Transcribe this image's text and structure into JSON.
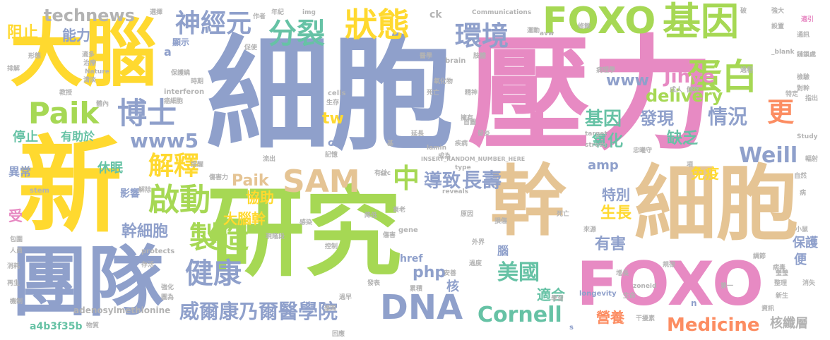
{
  "palette": {
    "blue": "#8fa0cb",
    "pink": "#e78ac3",
    "green": "#a6d854",
    "yellow": "#ffd92f",
    "tan": "#e5c494",
    "teal": "#66c2a5",
    "orange": "#fc8d62",
    "gray": "#b3b3b3"
  },
  "words": [
    {
      "text": "細胞",
      "color": "blue"
    },
    {
      "text": "壓力",
      "color": "pink"
    },
    {
      "text": "研究",
      "color": "green"
    },
    {
      "text": "新",
      "color": "yellow"
    },
    {
      "text": "幹",
      "color": "tan"
    },
    {
      "text": "細胞",
      "color": "tan"
    },
    {
      "text": "團隊",
      "color": "blue"
    },
    {
      "text": "大腦",
      "color": "yellow"
    },
    {
      "text": "FOXO",
      "color": "pink"
    },
    {
      "text": "FOXO",
      "color": "green"
    },
    {
      "text": "基因",
      "color": "green"
    },
    {
      "text": "蛋白",
      "color": "green"
    },
    {
      "text": "環境",
      "color": "blue"
    },
    {
      "text": "分裂",
      "color": "teal"
    },
    {
      "text": "狀態",
      "color": "yellow"
    },
    {
      "text": "神經元",
      "color": "blue"
    },
    {
      "text": "Paik",
      "color": "green"
    },
    {
      "text": "博士",
      "color": "blue"
    },
    {
      "text": "啟動",
      "color": "green"
    },
    {
      "text": "SAM",
      "color": "tan"
    },
    {
      "text": "DNA",
      "color": "blue"
    },
    {
      "text": "健康",
      "color": "blue"
    },
    {
      "text": "製造",
      "color": "green"
    },
    {
      "text": "解釋",
      "color": "yellow"
    },
    {
      "text": "威爾康乃爾醫學院",
      "color": "blue"
    },
    {
      "text": "中",
      "color": "green"
    },
    {
      "text": "導致",
      "color": "blue"
    },
    {
      "text": "長壽",
      "color": "blue"
    },
    {
      "text": "Weill",
      "color": "blue"
    },
    {
      "text": "更",
      "color": "orange"
    },
    {
      "text": "情況",
      "color": "blue"
    },
    {
      "text": "Cornell",
      "color": "teal"
    },
    {
      "text": "Medicine",
      "color": "orange"
    },
    {
      "text": "美國",
      "color": "teal"
    },
    {
      "text": "Jihye",
      "color": "pink"
    },
    {
      "text": "www",
      "color": "blue"
    },
    {
      "text": "www5",
      "color": "blue"
    },
    {
      "text": "delivery",
      "color": "green"
    },
    {
      "text": "基因",
      "color": "teal"
    },
    {
      "text": "氧化",
      "color": "teal"
    },
    {
      "text": "發現",
      "color": "blue"
    },
    {
      "text": "缺乏",
      "color": "teal"
    },
    {
      "text": "免疫",
      "color": "yellow"
    },
    {
      "text": "特別",
      "color": "blue"
    },
    {
      "text": "生長",
      "color": "yellow"
    },
    {
      "text": "有害",
      "color": "blue"
    },
    {
      "text": "幹細胞",
      "color": "blue"
    },
    {
      "text": "大腦幹",
      "color": "yellow"
    },
    {
      "text": "協助",
      "color": "yellow"
    },
    {
      "text": "Paik",
      "color": "tan"
    },
    {
      "text": "amp",
      "color": "blue"
    },
    {
      "text": "休眠",
      "color": "teal"
    },
    {
      "text": "technews",
      "color": "gray"
    },
    {
      "text": "阻止",
      "color": "yellow"
    },
    {
      "text": "能力",
      "color": "blue"
    },
    {
      "text": "停止",
      "color": "teal"
    },
    {
      "text": "有助於",
      "color": "teal"
    },
    {
      "text": "tw",
      "color": "yellow"
    },
    {
      "text": "php",
      "color": "blue"
    },
    {
      "text": "適合",
      "color": "teal"
    },
    {
      "text": "營養",
      "color": "orange"
    },
    {
      "text": "核纖層",
      "color": "gray"
    },
    {
      "text": "保護",
      "color": "blue"
    },
    {
      "text": "便",
      "color": "blue"
    },
    {
      "text": "核",
      "color": "blue"
    },
    {
      "text": "腦",
      "color": "blue"
    },
    {
      "text": "a4b3f35b",
      "color": "teal"
    },
    {
      "text": "影響",
      "color": "blue"
    },
    {
      "text": "異常",
      "color": "blue"
    },
    {
      "text": "受",
      "color": "pink"
    },
    {
      "text": "a",
      "color": "blue"
    },
    {
      "text": "顯示",
      "color": "blue"
    },
    {
      "text": "href",
      "color": "blue"
    },
    {
      "text": "cb",
      "color": "blue"
    },
    {
      "text": "adenosylmethionine",
      "color": "gray"
    },
    {
      "text": "stem",
      "color": "gray"
    },
    {
      "text": "interferon",
      "color": "gray"
    },
    {
      "text": "cells",
      "color": "gray"
    },
    {
      "text": "brain",
      "color": "gray"
    },
    {
      "text": "Nature",
      "color": "gray"
    },
    {
      "text": "reveals",
      "color": "gray"
    },
    {
      "text": "gene",
      "color": "gray"
    },
    {
      "text": "longevity",
      "color": "blue"
    },
    {
      "text": "zoneid",
      "color": "gray"
    },
    {
      "text": "target",
      "color": "gray"
    },
    {
      "text": "stress",
      "color": "gray"
    },
    {
      "text": "Study",
      "color": "gray"
    },
    {
      "text": "src",
      "color": "gray"
    },
    {
      "text": "type",
      "color": "gray"
    },
    {
      "text": "lamin",
      "color": "gray"
    },
    {
      "text": "protects",
      "color": "gray"
    },
    {
      "text": "img",
      "color": "gray"
    },
    {
      "text": "ck",
      "color": "gray"
    },
    {
      "text": "Communications",
      "color": "gray"
    },
    {
      "text": "avw",
      "color": "gray"
    },
    {
      "text": "_blank",
      "color": "gray"
    },
    {
      "text": "INSERT_RANDOM_NUMBER_HERE",
      "color": "gray"
    },
    {
      "text": "n",
      "color": "blue"
    },
    {
      "text": "s",
      "color": "blue"
    },
    {
      "text": "選擇",
      "color": "gray"
    },
    {
      "text": "年紀",
      "color": "gray"
    },
    {
      "text": "破",
      "color": "gray"
    },
    {
      "text": "強大",
      "color": "gray"
    },
    {
      "text": "適引",
      "color": "pink"
    },
    {
      "text": "運動",
      "color": "gray"
    },
    {
      "text": "修飾",
      "color": "gray"
    },
    {
      "text": "設置",
      "color": "gray"
    },
    {
      "text": "通訊",
      "color": "gray"
    },
    {
      "text": "醫學",
      "color": "gray"
    },
    {
      "text": "氧化物",
      "color": "gray"
    },
    {
      "text": "病理學",
      "color": "gray"
    },
    {
      "text": "過程",
      "color": "gray"
    },
    {
      "text": "鏈鎖處",
      "color": "gray"
    },
    {
      "text": "檢驗",
      "color": "gray"
    },
    {
      "text": "對幹",
      "color": "gray"
    },
    {
      "text": "指出",
      "color": "gray"
    },
    {
      "text": "成人",
      "color": "gray"
    },
    {
      "text": "儲存",
      "color": "gray"
    },
    {
      "text": "特定",
      "color": "gray"
    },
    {
      "text": "生存",
      "color": "gray"
    },
    {
      "text": "精神",
      "color": "gray"
    },
    {
      "text": "疾病",
      "color": "gray"
    },
    {
      "text": "記憶",
      "color": "gray"
    },
    {
      "text": "流出",
      "color": "gray"
    },
    {
      "text": "有益",
      "color": "gray"
    },
    {
      "text": "傷害力",
      "color": "gray"
    },
    {
      "text": "解除",
      "color": "gray"
    },
    {
      "text": "忠曦守",
      "color": "gray"
    },
    {
      "text": "項",
      "color": "gray"
    },
    {
      "text": "輻射",
      "color": "gray"
    },
    {
      "text": "自然",
      "color": "gray"
    },
    {
      "text": "病",
      "color": "gray"
    },
    {
      "text": "死亡",
      "color": "gray"
    },
    {
      "text": "來源",
      "color": "gray"
    },
    {
      "text": "小鼠",
      "color": "gray"
    },
    {
      "text": "外界",
      "color": "gray"
    },
    {
      "text": "控制",
      "color": "gray"
    },
    {
      "text": "現階段",
      "color": "gray"
    },
    {
      "text": "發表",
      "color": "gray"
    },
    {
      "text": "累積",
      "color": "gray"
    },
    {
      "text": "增長",
      "color": "gray"
    },
    {
      "text": "病毒",
      "color": "gray"
    },
    {
      "text": "消失",
      "color": "gray"
    },
    {
      "text": "新生",
      "color": "gray"
    },
    {
      "text": "資訊",
      "color": "gray"
    },
    {
      "text": "干擾素",
      "color": "gray"
    },
    {
      "text": "生命",
      "color": "gray"
    },
    {
      "text": "學習",
      "color": "gray"
    },
    {
      "text": "第一",
      "color": "gray"
    },
    {
      "text": "規律",
      "color": "gray"
    },
    {
      "text": "調節",
      "color": "gray"
    },
    {
      "text": "整理",
      "color": "gray"
    },
    {
      "text": "瑩瑩",
      "color": "gray"
    },
    {
      "text": "感染",
      "color": "gray"
    },
    {
      "text": "過早",
      "color": "gray"
    },
    {
      "text": "過度",
      "color": "gray"
    },
    {
      "text": "安善",
      "color": "gray"
    },
    {
      "text": "漂閑",
      "color": "gray"
    },
    {
      "text": "消耗",
      "color": "gray"
    },
    {
      "text": "人員",
      "color": "gray"
    },
    {
      "text": "包圍",
      "color": "gray"
    },
    {
      "text": "再生",
      "color": "gray"
    },
    {
      "text": "機制",
      "color": "gray"
    },
    {
      "text": "強化",
      "color": "gray"
    },
    {
      "text": "圖為",
      "color": "gray"
    },
    {
      "text": "物質",
      "color": "gray"
    },
    {
      "text": "存活",
      "color": "gray"
    },
    {
      "text": "提醒",
      "color": "gray"
    },
    {
      "text": "時期",
      "color": "gray"
    },
    {
      "text": "保護繞",
      "color": "gray"
    },
    {
      "text": "癌細胞",
      "color": "gray"
    },
    {
      "text": "體內",
      "color": "gray"
    },
    {
      "text": "教授",
      "color": "gray"
    },
    {
      "text": "適多",
      "color": "gray"
    },
    {
      "text": "治療",
      "color": "gray"
    },
    {
      "text": "清淡",
      "color": "gray"
    },
    {
      "text": "形態",
      "color": "gray"
    },
    {
      "text": "排解",
      "color": "gray"
    },
    {
      "text": "作者",
      "color": "gray"
    },
    {
      "text": "促使",
      "color": "gray"
    },
    {
      "text": "肢體",
      "color": "gray"
    },
    {
      "text": "死亡",
      "color": "gray"
    },
    {
      "text": "擁有",
      "color": "gray"
    },
    {
      "text": "發炎",
      "color": "gray"
    },
    {
      "text": "延長",
      "color": "gray"
    },
    {
      "text": "首圖",
      "color": "gray"
    },
    {
      "text": "基",
      "color": "gray"
    },
    {
      "text": "成為",
      "color": "gray"
    },
    {
      "text": "降低",
      "color": "gray"
    },
    {
      "text": "原因",
      "color": "gray"
    },
    {
      "text": "傷害",
      "color": "gray"
    },
    {
      "text": "衰老",
      "color": "gray"
    },
    {
      "text": "回應",
      "color": "gray"
    },
    {
      "text": "損傷",
      "color": "gray"
    },
    {
      "text": "應對",
      "color": "gray"
    }
  ]
}
